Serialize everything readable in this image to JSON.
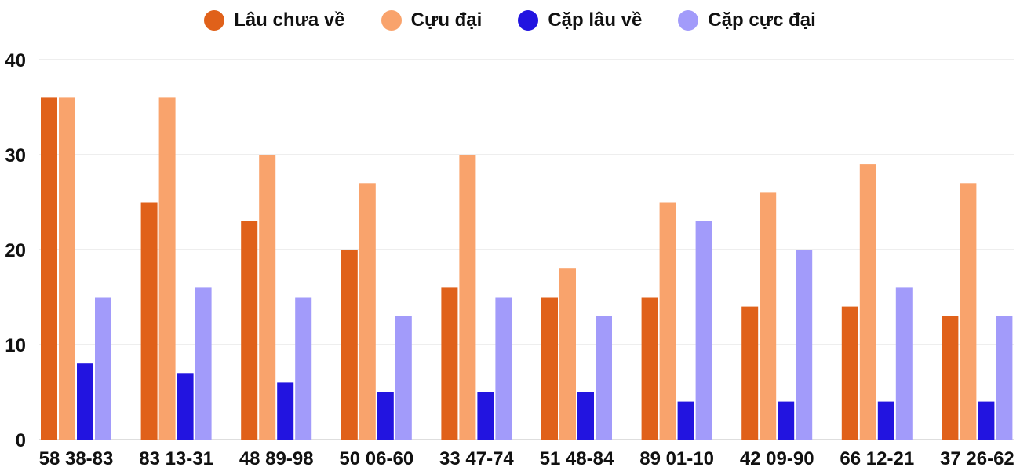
{
  "chart_data": {
    "type": "bar",
    "title": "",
    "xlabel": "",
    "ylabel": "",
    "ylim": [
      0,
      40
    ],
    "yticks": [
      0,
      10,
      20,
      30,
      40
    ],
    "grid": true,
    "legend_position": "top-center",
    "categories": [
      "58 38-83",
      "83 13-31",
      "48 89-98",
      "50 06-60",
      "33 47-74",
      "51 48-84",
      "89 01-10",
      "42 09-90",
      "66 12-21",
      "37 26-62"
    ],
    "series": [
      {
        "name": "Lâu chưa về",
        "color": "#e0611a",
        "values": [
          36,
          25,
          23,
          20,
          16,
          15,
          15,
          14,
          14,
          13
        ]
      },
      {
        "name": "Cựu đại",
        "color": "#f9a36c",
        "values": [
          36,
          36,
          30,
          27,
          30,
          18,
          25,
          26,
          29,
          27
        ]
      },
      {
        "name": "Cặp lâu về",
        "color": "#2214e0",
        "values": [
          8,
          7,
          6,
          5,
          5,
          5,
          4,
          4,
          4,
          4
        ]
      },
      {
        "name": "Cặp cực đại",
        "color": "#a29bfa",
        "values": [
          15,
          16,
          15,
          13,
          15,
          13,
          23,
          20,
          16,
          13
        ]
      }
    ]
  }
}
